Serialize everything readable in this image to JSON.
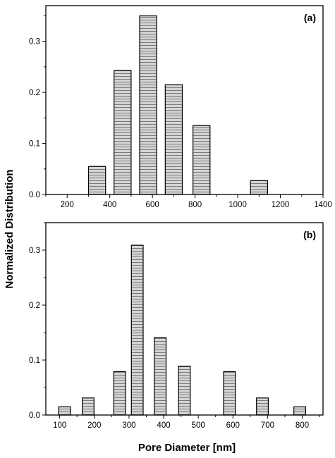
{
  "y_axis_label": "Normalized Distribution",
  "x_axis_label": "Pore Diameter [nm]",
  "chart_data": [
    {
      "type": "bar",
      "panel_label": "(a)",
      "bar_width": 80,
      "x": [
        340,
        460,
        580,
        700,
        830,
        1100
      ],
      "values": [
        0.055,
        0.243,
        0.35,
        0.215,
        0.135,
        0.027
      ],
      "xlim": [
        100,
        1400
      ],
      "ylim": [
        0,
        0.37
      ],
      "xticks": [
        200,
        400,
        600,
        800,
        1000,
        1200,
        1400
      ],
      "yticks": [
        0.0,
        0.1,
        0.2,
        0.3
      ],
      "ytick_labels": [
        "0.0",
        "0.1",
        "0.2",
        "0.3"
      ]
    },
    {
      "type": "bar",
      "panel_label": "(b)",
      "bar_width": 34,
      "x": [
        114,
        182,
        273,
        324,
        390,
        460,
        590,
        685,
        793
      ],
      "values": [
        0.015,
        0.031,
        0.079,
        0.309,
        0.141,
        0.089,
        0.079,
        0.031,
        0.015
      ],
      "xlim": [
        60,
        860
      ],
      "ylim": [
        0,
        0.35
      ],
      "xticks": [
        100,
        200,
        300,
        400,
        500,
        600,
        700,
        800
      ],
      "yticks": [
        0.0,
        0.1,
        0.2,
        0.3
      ],
      "ytick_labels": [
        "0.0",
        "0.1",
        "0.2",
        "0.3"
      ]
    }
  ]
}
